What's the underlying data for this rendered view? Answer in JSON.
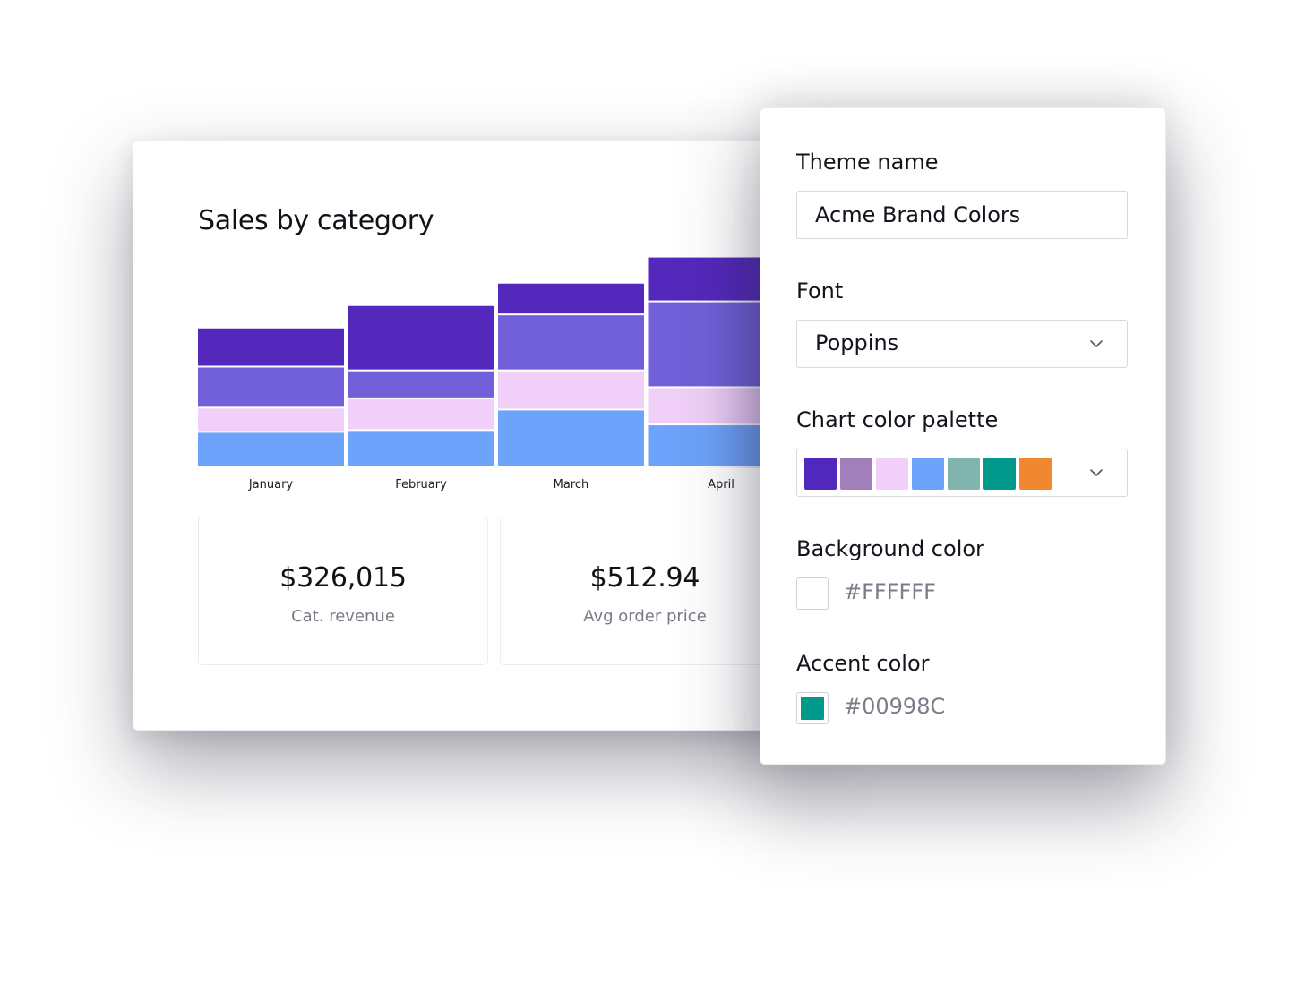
{
  "dashboard": {
    "title": "Sales by category",
    "kpis": [
      {
        "value": "$326,015",
        "label": "Cat. revenue"
      },
      {
        "value": "$512.94",
        "label": "Avg order price"
      }
    ]
  },
  "chart_data": {
    "type": "bar",
    "stacked": true,
    "title": "Sales by category",
    "categories": [
      "January",
      "February",
      "March",
      "April"
    ],
    "series": [
      {
        "color": "#6ea3fb",
        "values": [
          38,
          40,
          62,
          46
        ]
      },
      {
        "color": "#f0d0f8",
        "values": [
          26,
          34,
          42,
          40
        ]
      },
      {
        "color": "#7260da",
        "values": [
          44,
          30,
          60,
          92
        ]
      },
      {
        "color": "#5428bc",
        "values": [
          42,
          70,
          34,
          48
        ]
      }
    ],
    "legend": false,
    "grid": false,
    "ylim": [
      0,
      240
    ]
  },
  "theme": {
    "name_label": "Theme name",
    "name_value": "Acme Brand Colors",
    "font_label": "Font",
    "font_value": "Poppins",
    "palette_label": "Chart color palette",
    "palette": [
      "#5128bd",
      "#a17fb9",
      "#f0d0f8",
      "#6ea3fb",
      "#82b4ae",
      "#00998c",
      "#f08830"
    ],
    "background_label": "Background color",
    "background_value": "#FFFFFF",
    "background_color": "#FFFFFF",
    "accent_label": "Accent color",
    "accent_value": "#00998C",
    "accent_color": "#00998C",
    "chevron_icon": "chevron-down-icon"
  }
}
